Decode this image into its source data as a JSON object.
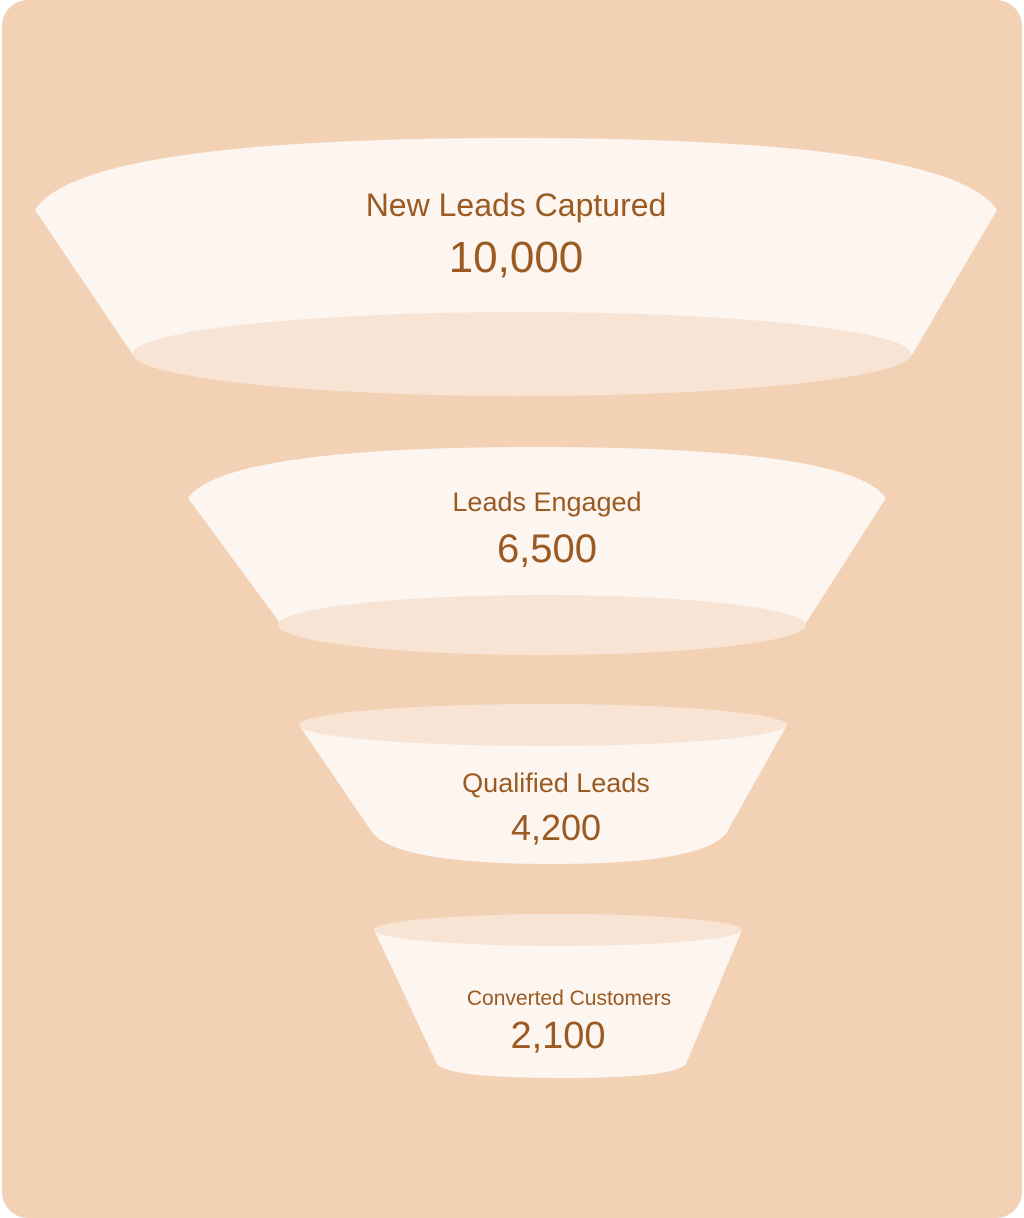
{
  "colors": {
    "background": "#f3d1b4",
    "stage_fill": "#fcf5f0",
    "stage_rim": "#f7e4d4",
    "text": "#9a5a22"
  },
  "stages": [
    {
      "label": "New Leads Captured",
      "value": "10,000"
    },
    {
      "label": "Leads Engaged",
      "value": "6,500"
    },
    {
      "label": "Qualified Leads",
      "value": "4,200"
    },
    {
      "label": "Converted Customers",
      "value": "2,100"
    }
  ]
}
